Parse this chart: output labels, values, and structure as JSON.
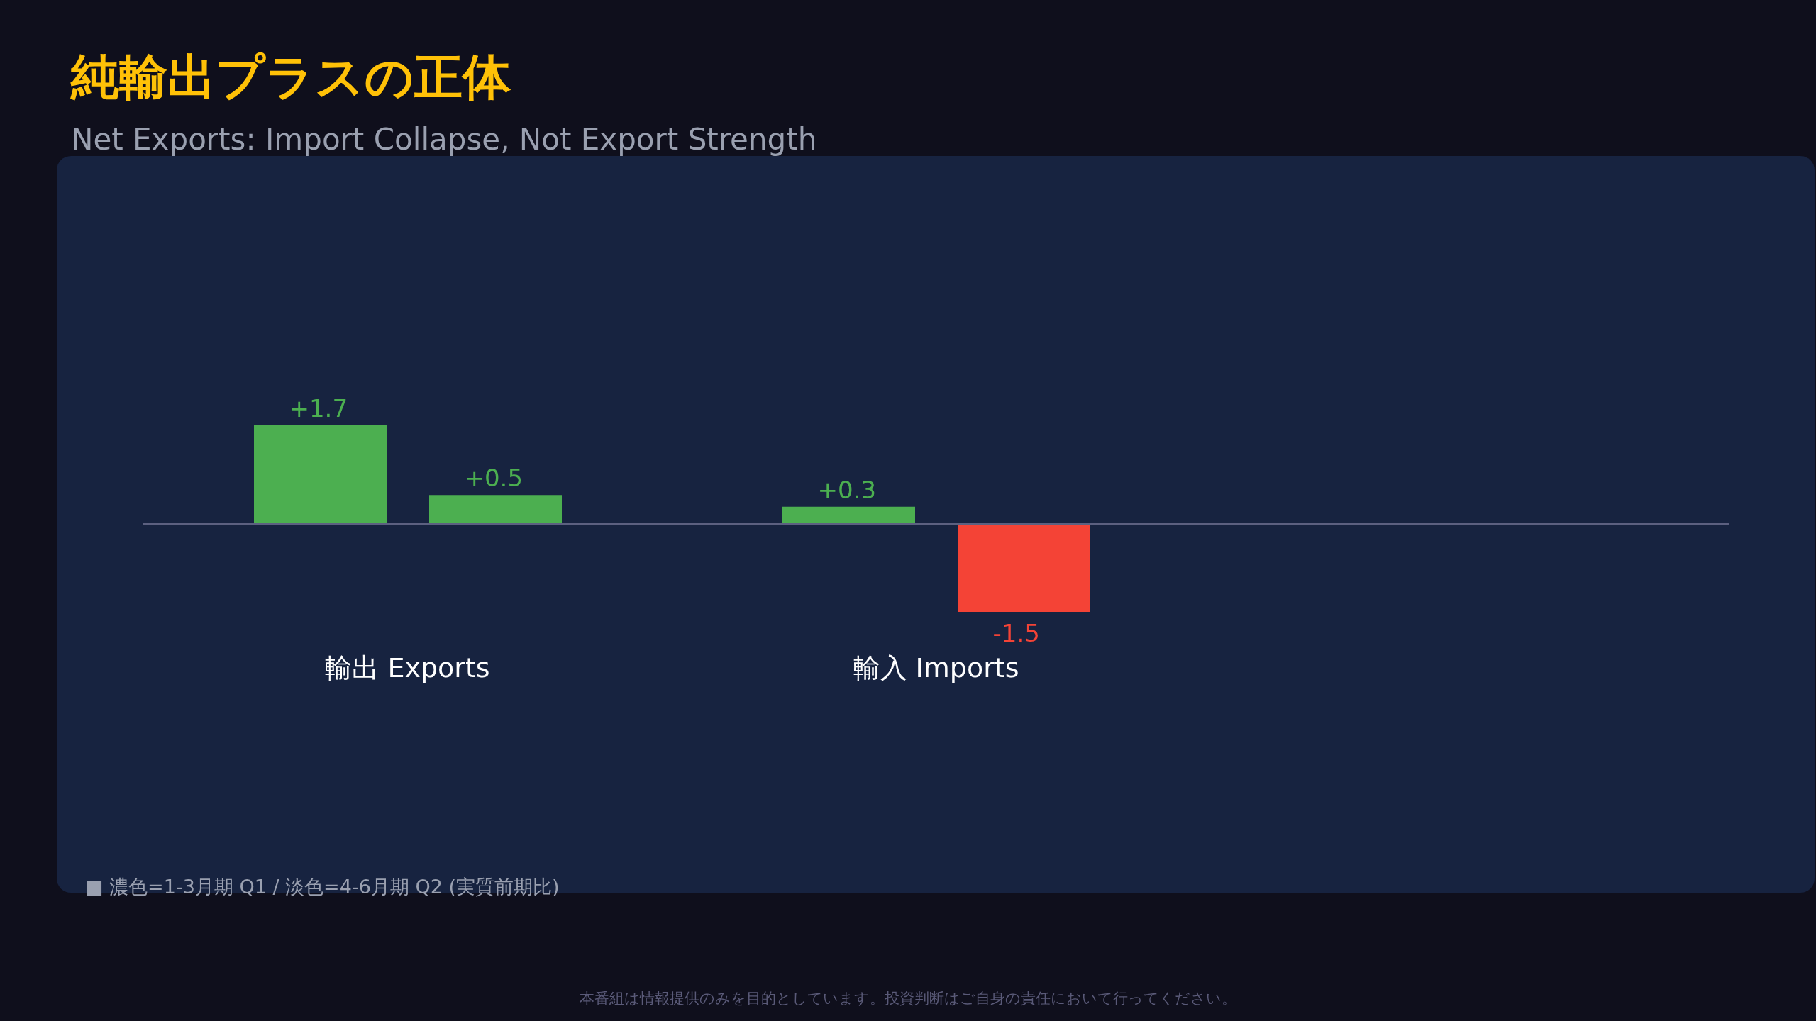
{
  "chart_data": {
    "type": "bar",
    "title": "純輸出プラスの正体",
    "subtitle": "Net Exports: Import Collapse, Not Export Strength",
    "categories": [
      "輸出 Exports",
      "輸入 Imports"
    ],
    "series": [
      {
        "colors": [
          "#4caf50",
          "#4caf50"
        ],
        "values": [
          1.7,
          0.3
        ],
        "value_labels": [
          "+1.7",
          "+0.3"
        ]
      },
      {
        "colors": [
          "#4caf50",
          "#f44336"
        ],
        "values": [
          0.5,
          -1.5
        ],
        "value_labels": [
          "+0.5",
          "-1.5"
        ]
      }
    ],
    "grid": false,
    "legend": false,
    "annotations": [
      "■ 濃色=1-3月期 Q1 / 淡色=4-6月期 Q2 (実質前期比)",
      "本番組は情報提供のみを目的としています。投資判断はご自身の責任において行ってください。"
    ]
  }
}
